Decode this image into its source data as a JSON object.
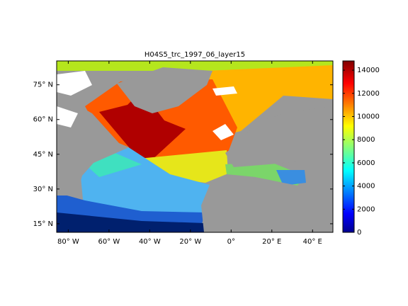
{
  "chart_data": {
    "type": "map",
    "title": "H04S5_trc_1997_06_layer15",
    "xlim": [
      -85.7,
      50
    ],
    "xticks": [
      {
        "value": -80,
        "label": "80° W"
      },
      {
        "value": -60,
        "label": "60° W"
      },
      {
        "value": -40,
        "label": "40° W"
      },
      {
        "value": -20,
        "label": "20° W"
      },
      {
        "value": 0,
        "label": "0°"
      },
      {
        "value": 20,
        "label": "20° E"
      },
      {
        "value": 40,
        "label": "40° E"
      }
    ],
    "ylim": [
      11.3,
      85.3
    ],
    "yticks": [
      {
        "value": 15,
        "label": "15° N"
      },
      {
        "value": 30,
        "label": "30° N"
      },
      {
        "value": 45,
        "label": "45° N"
      },
      {
        "value": 60,
        "label": "60° N"
      },
      {
        "value": 75,
        "label": "75° N"
      }
    ],
    "colorbar": {
      "colormap": "jet",
      "clim": [
        0,
        14800
      ],
      "ticks": [
        0,
        2000,
        4000,
        6000,
        8000,
        10000,
        12000,
        14000
      ]
    }
  }
}
